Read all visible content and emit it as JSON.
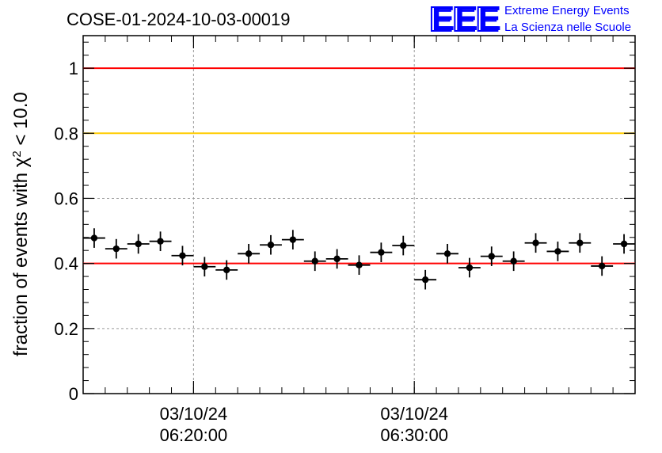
{
  "chart_data": {
    "type": "scatter",
    "title": "COSE-01-2024-10-03-00019",
    "ylabel": {
      "prefix": "fraction of events with ",
      "symbol": "χ",
      "superscript": "2",
      "suffix": " < 10.0"
    },
    "ylim": [
      0,
      1.1
    ],
    "yticks": [
      {
        "value": 0,
        "label": "0"
      },
      {
        "value": 0.2,
        "label": "0.2"
      },
      {
        "value": 0.4,
        "label": "0.4"
      },
      {
        "value": 0.6,
        "label": "0.6"
      },
      {
        "value": 0.8,
        "label": "0.8"
      },
      {
        "value": 1.0,
        "label": "1"
      }
    ],
    "xlim_min": [
      0,
      25
    ],
    "xticks": [
      {
        "value": 5,
        "line1": "03/10/24",
        "line2": "06:20:00"
      },
      {
        "value": 15,
        "line1": "03/10/24",
        "line2": "06:30:00"
      }
    ],
    "x_minor_step_min": 1,
    "grid": true,
    "reference_lines": [
      {
        "value": 1.0,
        "color": "#ff0000"
      },
      {
        "value": 0.8,
        "color": "#ffcc00"
      },
      {
        "value": 0.4,
        "color": "#ff0000"
      }
    ],
    "x_half_width_min": 0.5,
    "points": [
      {
        "x": 0.5,
        "y": 0.478,
        "err": 0.03
      },
      {
        "x": 1.5,
        "y": 0.445,
        "err": 0.03
      },
      {
        "x": 2.5,
        "y": 0.46,
        "err": 0.03
      },
      {
        "x": 3.5,
        "y": 0.468,
        "err": 0.03
      },
      {
        "x": 4.5,
        "y": 0.424,
        "err": 0.03
      },
      {
        "x": 5.5,
        "y": 0.39,
        "err": 0.03
      },
      {
        "x": 6.5,
        "y": 0.38,
        "err": 0.03
      },
      {
        "x": 7.5,
        "y": 0.43,
        "err": 0.03
      },
      {
        "x": 8.5,
        "y": 0.457,
        "err": 0.03
      },
      {
        "x": 9.5,
        "y": 0.473,
        "err": 0.03
      },
      {
        "x": 10.5,
        "y": 0.407,
        "err": 0.03
      },
      {
        "x": 11.5,
        "y": 0.414,
        "err": 0.03
      },
      {
        "x": 12.5,
        "y": 0.395,
        "err": 0.03
      },
      {
        "x": 13.5,
        "y": 0.434,
        "err": 0.03
      },
      {
        "x": 14.5,
        "y": 0.455,
        "err": 0.03
      },
      {
        "x": 15.5,
        "y": 0.35,
        "err": 0.03
      },
      {
        "x": 16.5,
        "y": 0.43,
        "err": 0.03
      },
      {
        "x": 17.5,
        "y": 0.387,
        "err": 0.03
      },
      {
        "x": 18.5,
        "y": 0.422,
        "err": 0.03
      },
      {
        "x": 19.5,
        "y": 0.407,
        "err": 0.03
      },
      {
        "x": 20.5,
        "y": 0.463,
        "err": 0.03
      },
      {
        "x": 21.5,
        "y": 0.437,
        "err": 0.03
      },
      {
        "x": 22.5,
        "y": 0.463,
        "err": 0.03
      },
      {
        "x": 23.5,
        "y": 0.392,
        "err": 0.03
      },
      {
        "x": 24.5,
        "y": 0.46,
        "err": 0.03
      }
    ],
    "marker_color": "#000000"
  },
  "logo": {
    "letters": "EEE",
    "line1": "Extreme Energy Events",
    "line2": "La Scienza nelle Scuole",
    "color": "#0000ff"
  }
}
